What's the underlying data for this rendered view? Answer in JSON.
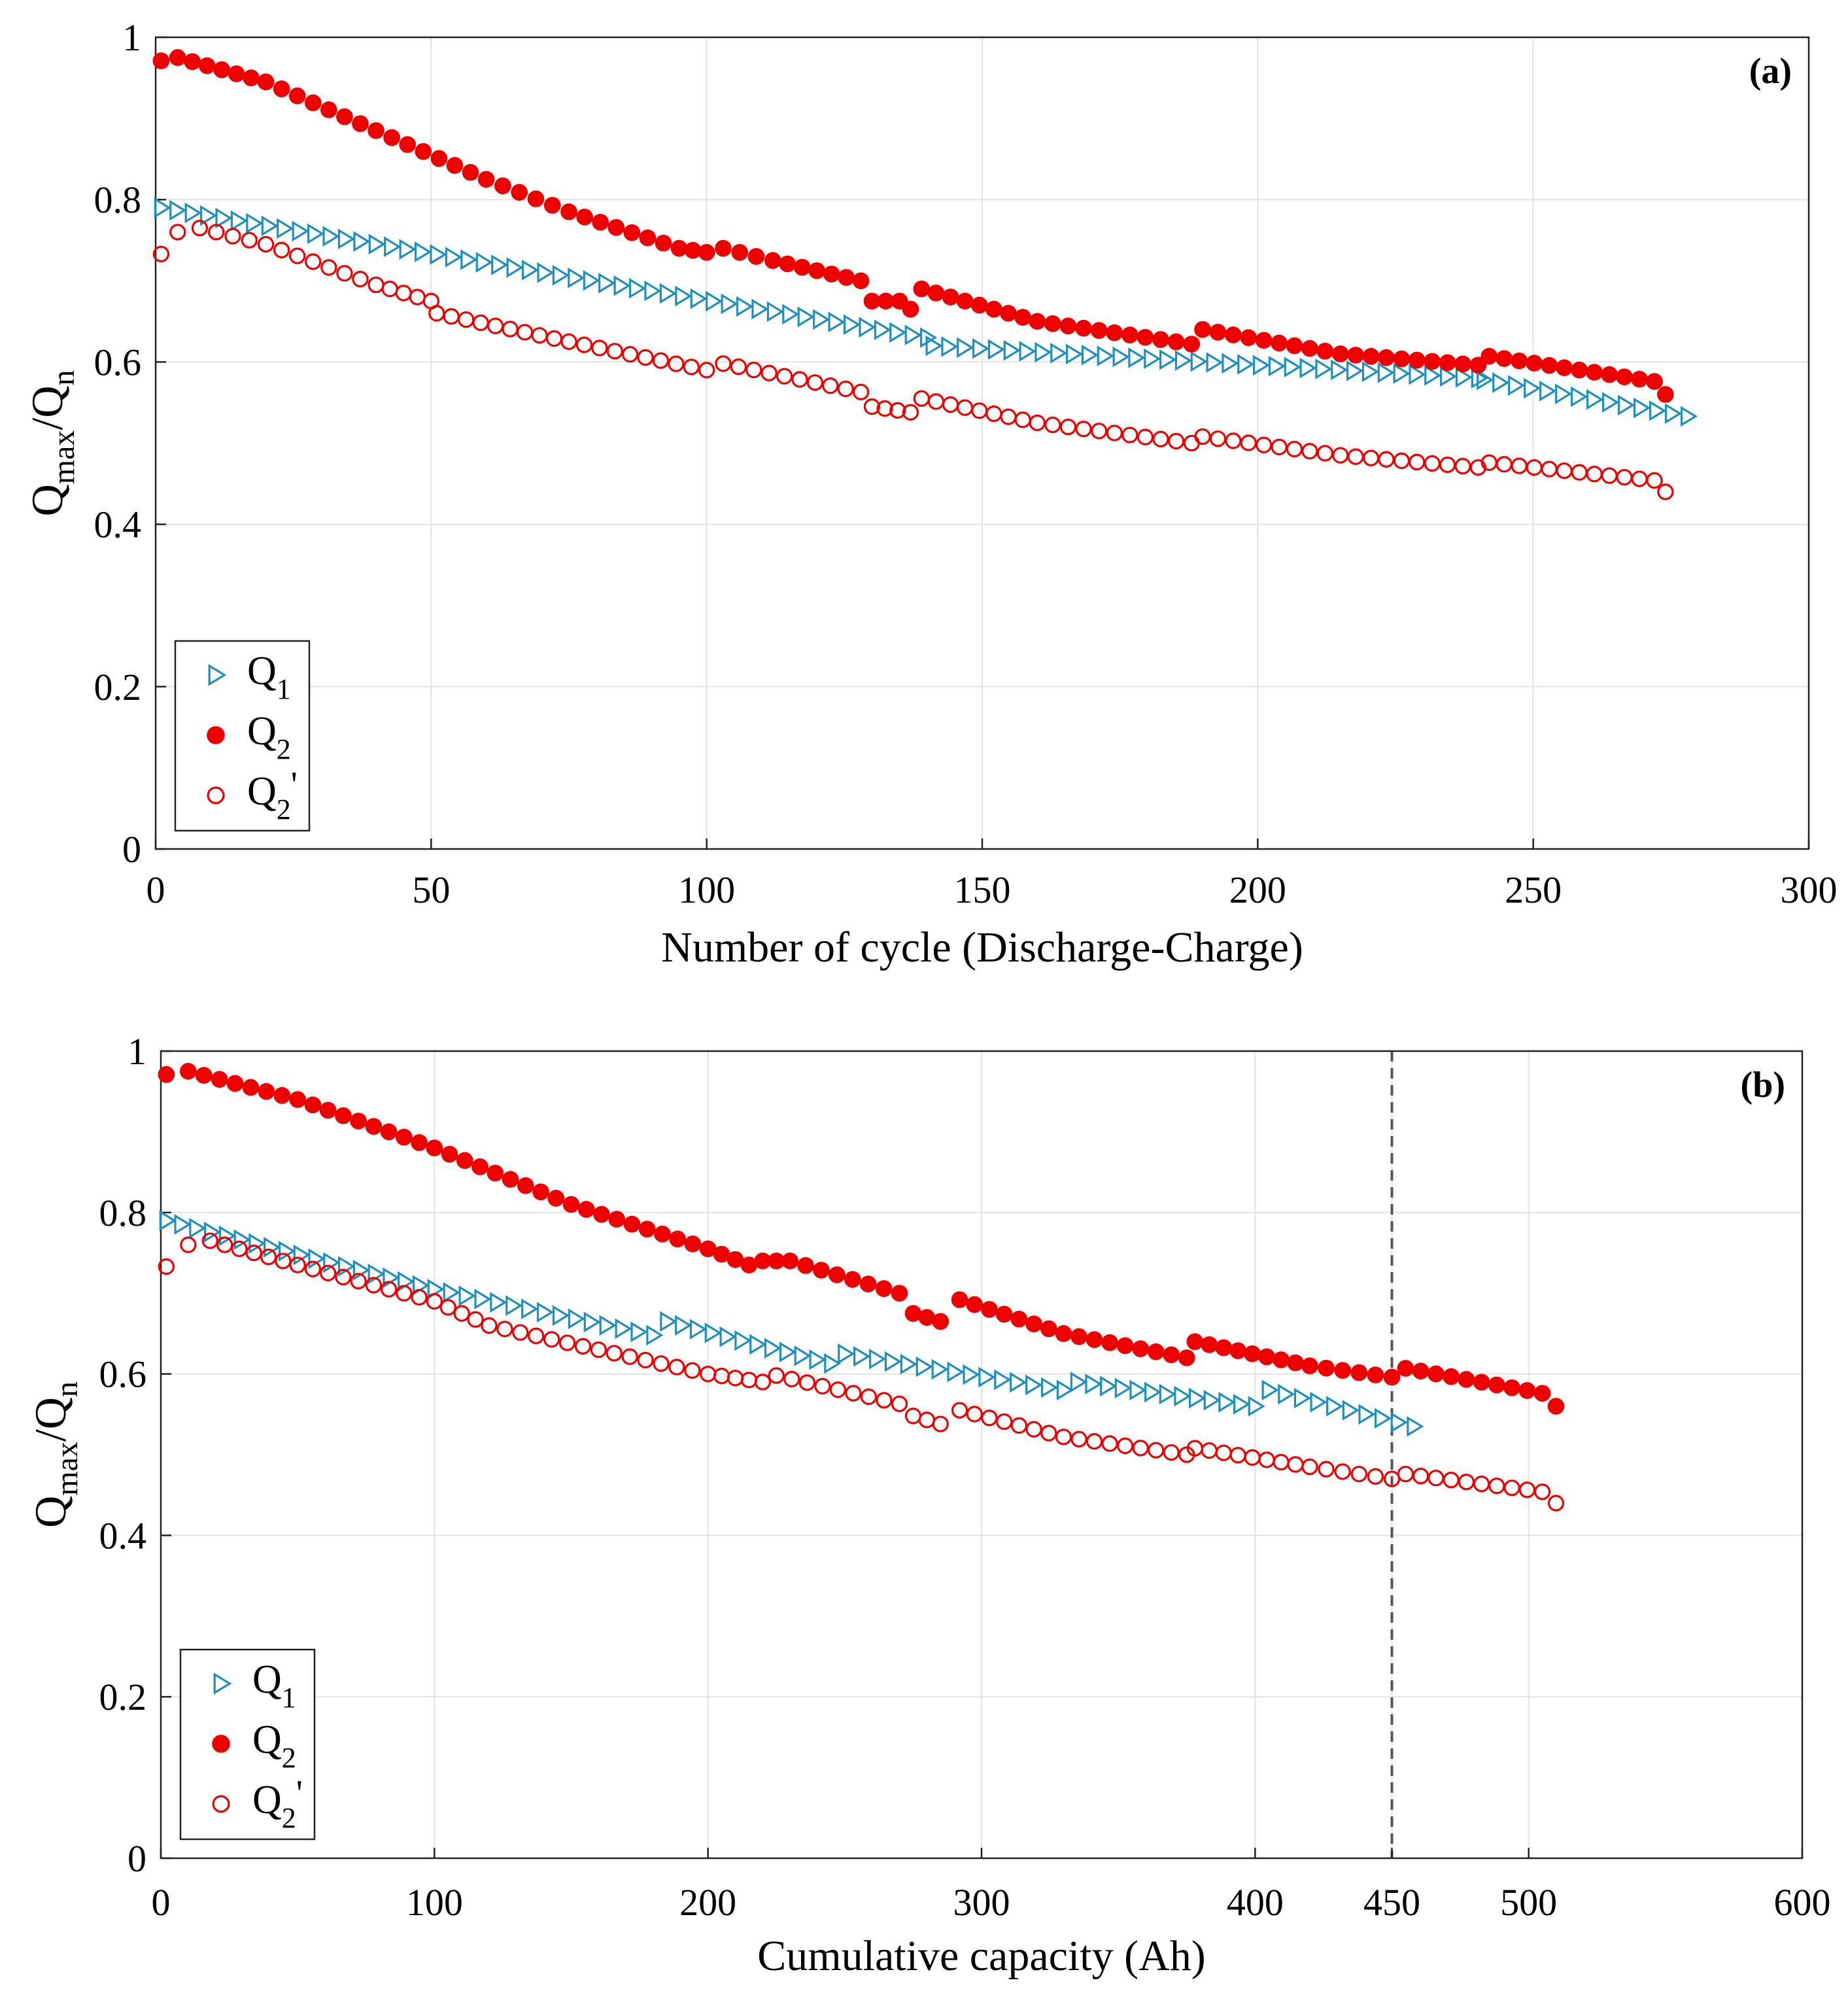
{
  "chart_data": [
    {
      "id": "a",
      "type": "scatter",
      "panel_label": "(a)",
      "xlabel": "Number of cycle (Discharge-Charge)",
      "ylabel": {
        "main": "Q",
        "sub1": "max",
        "mid": "/Q",
        "sub2": "n"
      },
      "xlim": [
        0,
        300
      ],
      "ylim": [
        0,
        1
      ],
      "xticks": [
        0,
        50,
        100,
        150,
        200,
        250,
        300
      ],
      "xtick_labels": [
        "0",
        "50",
        "100",
        "150",
        "200",
        "250",
        "300"
      ],
      "yticks": [
        0,
        0.2,
        0.4,
        0.6,
        0.8,
        1
      ],
      "ytick_labels": [
        "0",
        "0.2",
        "0.4",
        "0.6",
        "0.8",
        "1"
      ],
      "grid": true,
      "legend_position": "bottom-left",
      "legend": [
        {
          "key": "q1",
          "label": "Q",
          "sub": "1",
          "prime": ""
        },
        {
          "key": "q2",
          "label": "Q",
          "sub": "2",
          "prime": ""
        },
        {
          "key": "q2p",
          "label": "Q",
          "sub": "2",
          "prime": "'"
        }
      ],
      "series": [
        {
          "key": "q1",
          "name": "Q1",
          "marker": "triangle-right-open",
          "color": "#1f8fbf",
          "points": [
            [
              1,
              0.79
            ],
            [
              140,
              0.63
            ],
            [
              141,
              0.62
            ],
            [
              240,
              0.58
            ],
            [
              241,
              0.578
            ],
            [
              278,
              0.533
            ]
          ],
          "jumps_note": "piecewise-linear decay with small upward steps"
        },
        {
          "key": "q2",
          "name": "Q2",
          "marker": "circle-filled",
          "color": "#ee0000",
          "points": [
            [
              1,
              0.971
            ],
            [
              4,
              0.975
            ],
            [
              20,
              0.945
            ],
            [
              40,
              0.885
            ],
            [
              60,
              0.825
            ],
            [
              75,
              0.785
            ],
            [
              95,
              0.74
            ],
            [
              100,
              0.735
            ],
            [
              103,
              0.74
            ],
            [
              112,
              0.725
            ],
            [
              128,
              0.7
            ],
            [
              130,
              0.675
            ],
            [
              135,
              0.675
            ],
            [
              137,
              0.665
            ],
            [
              139,
              0.69
            ],
            [
              160,
              0.65
            ],
            [
              188,
              0.622
            ],
            [
              190,
              0.64
            ],
            [
              215,
              0.61
            ],
            [
              240,
              0.596
            ],
            [
              242,
              0.607
            ],
            [
              272,
              0.576
            ],
            [
              274,
              0.56
            ]
          ]
        },
        {
          "key": "q2p",
          "name": "Q2'",
          "marker": "circle-open",
          "color": "#ee0000",
          "points": [
            [
              1,
              0.733
            ],
            [
              4,
              0.76
            ],
            [
              8,
              0.765
            ],
            [
              20,
              0.745
            ],
            [
              40,
              0.695
            ],
            [
              50,
              0.675
            ],
            [
              51,
              0.66
            ],
            [
              75,
              0.625
            ],
            [
              100,
              0.59
            ],
            [
              103,
              0.598
            ],
            [
              128,
              0.563
            ],
            [
              130,
              0.545
            ],
            [
              137,
              0.538
            ],
            [
              139,
              0.555
            ],
            [
              160,
              0.525
            ],
            [
              188,
              0.5
            ],
            [
              190,
              0.508
            ],
            [
              215,
              0.485
            ],
            [
              240,
              0.47
            ],
            [
              242,
              0.476
            ],
            [
              272,
              0.454
            ],
            [
              274,
              0.44
            ]
          ]
        }
      ],
      "vlines": []
    },
    {
      "id": "b",
      "type": "scatter",
      "panel_label": "(b)",
      "xlabel": "Cumulative capacity (Ah)",
      "ylabel": {
        "main": "Q",
        "sub1": "max",
        "mid": "/Q",
        "sub2": "n"
      },
      "xlim": [
        0,
        600
      ],
      "ylim": [
        0,
        1
      ],
      "xticks": [
        0,
        100,
        200,
        300,
        400,
        450,
        500,
        600
      ],
      "xtick_labels": [
        "0",
        "100",
        "200",
        "300",
        "400",
        "450",
        "500",
        "600"
      ],
      "yticks": [
        0,
        0.2,
        0.4,
        0.6,
        0.8,
        1
      ],
      "ytick_labels": [
        "0",
        "0.2",
        "0.4",
        "0.6",
        "0.8",
        "1"
      ],
      "grid": true,
      "legend_position": "bottom-left",
      "legend": [
        {
          "key": "q1",
          "label": "Q",
          "sub": "1",
          "prime": ""
        },
        {
          "key": "q2",
          "label": "Q",
          "sub": "2",
          "prime": ""
        },
        {
          "key": "q2p",
          "label": "Q",
          "sub": "2",
          "prime": "'"
        }
      ],
      "series": [
        {
          "key": "q1",
          "name": "Q1",
          "marker": "triangle-right-open",
          "color": "#1f8fbf",
          "points": [
            [
              2,
              0.79
            ],
            [
              100,
              0.705
            ],
            [
              180,
              0.648
            ],
            [
              185,
              0.665
            ],
            [
              245,
              0.613
            ],
            [
              250,
              0.625
            ],
            [
              330,
              0.58
            ],
            [
              335,
              0.59
            ],
            [
              400,
              0.56
            ],
            [
              405,
              0.58
            ],
            [
              458,
              0.535
            ]
          ]
        },
        {
          "key": "q2",
          "name": "Q2",
          "marker": "circle-filled",
          "color": "#ee0000",
          "points": [
            [
              2,
              0.971
            ],
            [
              10,
              0.975
            ],
            [
              50,
              0.94
            ],
            [
              100,
              0.88
            ],
            [
              150,
              0.81
            ],
            [
              200,
              0.755
            ],
            [
              215,
              0.735
            ],
            [
              220,
              0.74
            ],
            [
              230,
              0.74
            ],
            [
              270,
              0.7
            ],
            [
              275,
              0.675
            ],
            [
              285,
              0.665
            ],
            [
              292,
              0.692
            ],
            [
              330,
              0.65
            ],
            [
              375,
              0.62
            ],
            [
              378,
              0.64
            ],
            [
              420,
              0.61
            ],
            [
              450,
              0.596
            ],
            [
              455,
              0.607
            ],
            [
              505,
              0.576
            ],
            [
              510,
              0.56
            ]
          ]
        },
        {
          "key": "q2p",
          "name": "Q2'",
          "marker": "circle-open",
          "color": "#ee0000",
          "points": [
            [
              2,
              0.733
            ],
            [
              10,
              0.76
            ],
            [
              18,
              0.765
            ],
            [
              50,
              0.735
            ],
            [
              100,
              0.69
            ],
            [
              120,
              0.66
            ],
            [
              160,
              0.63
            ],
            [
              200,
              0.6
            ],
            [
              220,
              0.59
            ],
            [
              225,
              0.598
            ],
            [
              270,
              0.563
            ],
            [
              275,
              0.548
            ],
            [
              285,
              0.538
            ],
            [
              292,
              0.555
            ],
            [
              330,
              0.522
            ],
            [
              375,
              0.5
            ],
            [
              378,
              0.508
            ],
            [
              420,
              0.485
            ],
            [
              450,
              0.47
            ],
            [
              455,
              0.476
            ],
            [
              505,
              0.454
            ],
            [
              510,
              0.44
            ]
          ]
        }
      ],
      "vlines": [
        {
          "x": 450,
          "style": "dashed",
          "color": "#555555"
        }
      ]
    }
  ]
}
